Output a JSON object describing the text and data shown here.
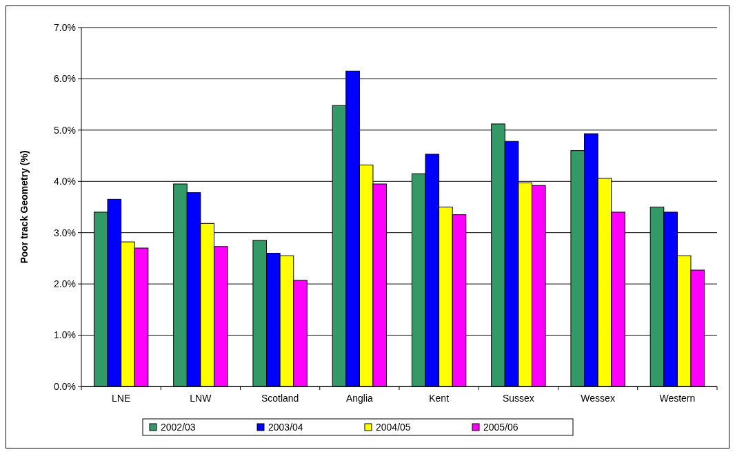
{
  "chart_data": {
    "type": "bar",
    "ylabel": "Poor track Geometry (%)",
    "categories": [
      "LNE",
      "LNW",
      "Scotland",
      "Anglia",
      "Kent",
      "Sussex",
      "Wessex",
      "Western"
    ],
    "series": [
      {
        "name": "2002/03",
        "color": "#339966",
        "values": [
          3.4,
          3.95,
          2.85,
          5.48,
          4.15,
          5.12,
          4.6,
          3.5
        ]
      },
      {
        "name": "2003/04",
        "color": "#0000ff",
        "values": [
          3.65,
          3.78,
          2.6,
          6.15,
          4.53,
          4.78,
          4.93,
          3.4
        ]
      },
      {
        "name": "2004/05",
        "color": "#ffff00",
        "values": [
          2.82,
          3.18,
          2.55,
          4.32,
          3.5,
          3.97,
          4.06,
          2.55
        ]
      },
      {
        "name": "2005/06",
        "color": "#ff00ff",
        "values": [
          2.7,
          2.73,
          2.07,
          3.95,
          3.35,
          3.92,
          3.4,
          2.27
        ]
      }
    ],
    "ylim": [
      0,
      7
    ],
    "yticks": [
      {
        "value": 0,
        "label": "0.0%"
      },
      {
        "value": 1,
        "label": "1.0%"
      },
      {
        "value": 2,
        "label": "2.0%"
      },
      {
        "value": 3,
        "label": "3.0%"
      },
      {
        "value": 4,
        "label": "4.0%"
      },
      {
        "value": 5,
        "label": "5.0%"
      },
      {
        "value": 6,
        "label": "6.0%"
      },
      {
        "value": 7,
        "label": "7.0%"
      }
    ],
    "grid": "y",
    "legend": "bottom"
  }
}
